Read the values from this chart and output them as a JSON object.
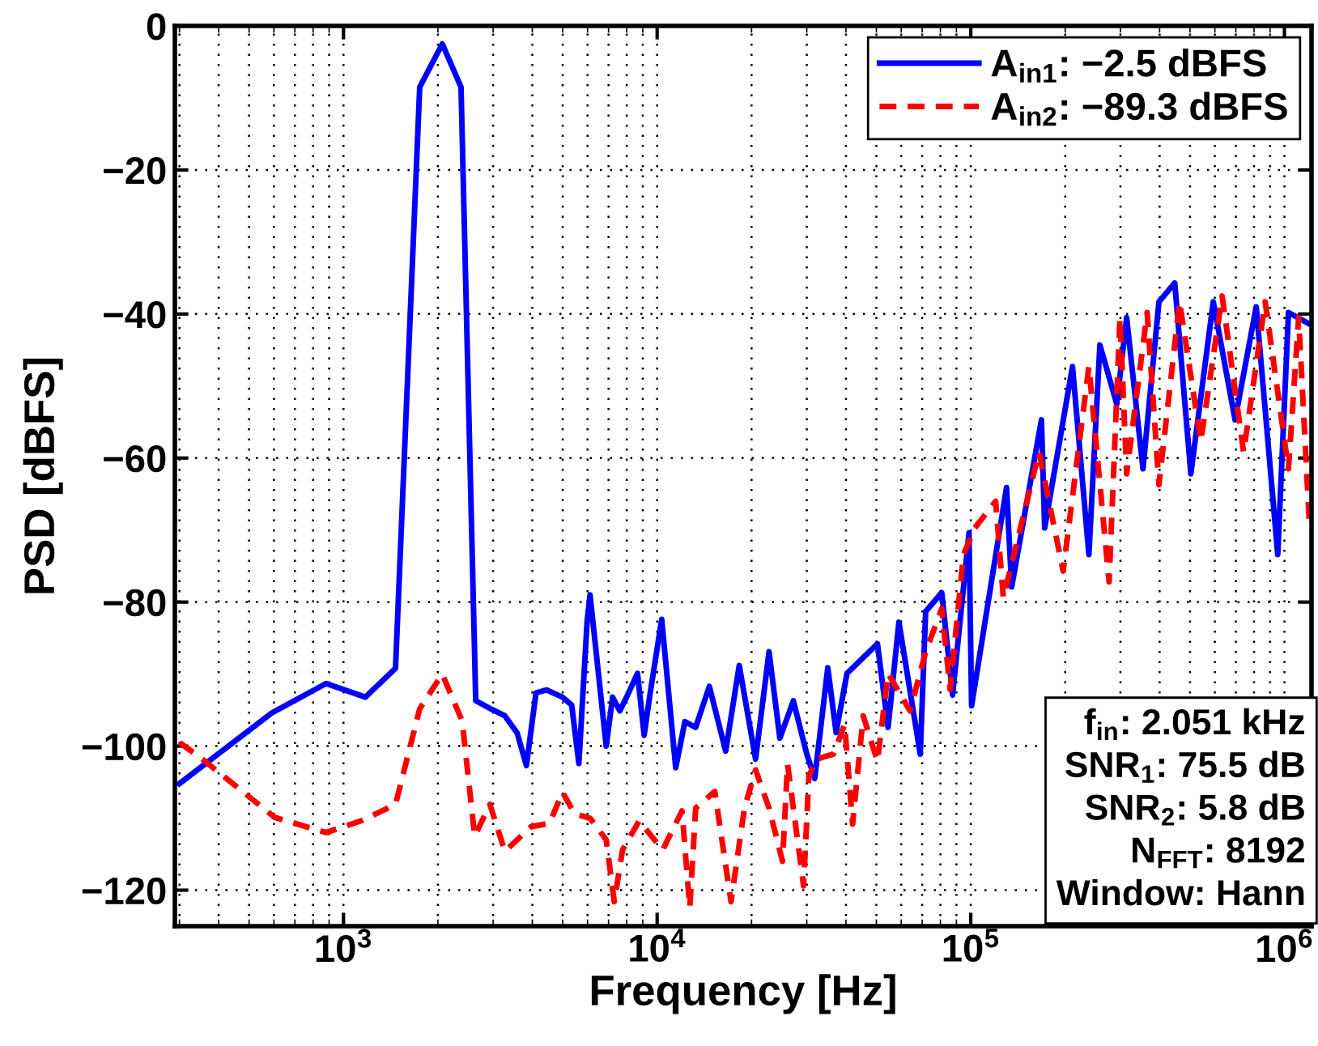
{
  "chart_data": {
    "type": "line",
    "xlabel": "Frequency [Hz]",
    "ylabel": "PSD [dBFS]",
    "log": "x",
    "xlim": [
      290,
      1220000
    ],
    "ylim": [
      -125,
      0
    ],
    "xticks": [
      {
        "value": 1000,
        "label": "10$^{3}$"
      },
      {
        "value": 10000,
        "label": "10$^{4}$"
      },
      {
        "value": 100000,
        "label": "10$^{5}$"
      },
      {
        "value": 1000000,
        "label": "10$^{6}$"
      }
    ],
    "yticks": [
      -120,
      -100,
      -80,
      -60,
      -40,
      -20,
      0
    ],
    "grid": true,
    "legend": "top right",
    "series": [
      {
        "name": "A$_{in1}$: −2.5 dBFS",
        "color": "#0000ff",
        "line_style": "solid",
        "x": [
          300,
          590,
          880,
          1175,
          1465,
          1750,
          2065,
          2370,
          2640,
          2970,
          3270,
          3580,
          3830,
          4110,
          4440,
          4990,
          5340,
          5630,
          5980,
          6110,
          6880,
          7210,
          7600,
          7990,
          8660,
          9090,
          9460,
          10340,
          11460,
          12260,
          13270,
          14670,
          16540,
          18270,
          20600,
          22740,
          24620,
          27180,
          30000,
          31800,
          35000,
          37200,
          40300,
          50400,
          54500,
          59000,
          69000,
          71800,
          80800,
          87500,
          98700,
          100600,
          130000,
          135000,
          168000,
          172000,
          211000,
          238000,
          258000,
          292000,
          314000,
          354000,
          398000,
          447000,
          503000,
          593000,
          696000,
          813000,
          952000,
          1030000,
          1190000
        ],
        "values": [
          -105.2,
          -95.4,
          -91.3,
          -93.2,
          -89.2,
          -8.5,
          -2.5,
          -8.5,
          -93.7,
          -94.9,
          -95.8,
          -98.2,
          -102.7,
          -92.6,
          -92.2,
          -93.2,
          -94.3,
          -102.4,
          -82.7,
          -79,
          -100,
          -93.2,
          -95.1,
          -93.2,
          -89.9,
          -98.5,
          -93.2,
          -82.4,
          -103,
          -96.6,
          -97.4,
          -91.7,
          -100.7,
          -88.8,
          -101.8,
          -86.9,
          -98.9,
          -93.7,
          -101.1,
          -104.5,
          -89.1,
          -98.1,
          -89.9,
          -85.8,
          -97.4,
          -82.8,
          -101.1,
          -81.3,
          -78.7,
          -92.9,
          -70.4,
          -94.4,
          -64.1,
          -77.9,
          -54.7,
          -69.7,
          -47.3,
          -73.4,
          -44.3,
          -52.5,
          -40.5,
          -61.5,
          -38.3,
          -35.7,
          -62.2,
          -38.3,
          -54.7,
          -39,
          -73.4,
          -39.8,
          -41.3
        ]
      },
      {
        "name": "A$_{in2}$: −89.3 dBFS",
        "color": "#ff0000",
        "line_style": "dashed",
        "x": [
          300,
          350,
          604,
          880,
          1150,
          1465,
          1750,
          2065,
          2390,
          2620,
          2930,
          3270,
          3960,
          4540,
          4990,
          5460,
          6110,
          6880,
          7300,
          7760,
          8760,
          10420,
          12000,
          12710,
          13270,
          15270,
          17200,
          18980,
          20600,
          22740,
          25100,
          26050,
          29300,
          30470,
          32300,
          36500,
          39600,
          42000,
          45400,
          50400,
          54500,
          64000,
          71800,
          80800,
          85900,
          94800,
          103000,
          120000,
          127000,
          165000,
          197000,
          238000,
          276000,
          299000,
          314000,
          365000,
          398000,
          463000,
          541000,
          633000,
          741000,
          868000,
          1030000,
          1110000,
          1200000
        ],
        "values": [
          -99.5,
          -101.6,
          -109.9,
          -112,
          -110.3,
          -108.1,
          -94.8,
          -90,
          -96.5,
          -112.5,
          -108.1,
          -114.6,
          -111.2,
          -110.7,
          -106.4,
          -109.4,
          -110,
          -113,
          -121.6,
          -114.4,
          -110.4,
          -114.4,
          -109,
          -122.4,
          -108.6,
          -106.3,
          -121.6,
          -108.6,
          -103.3,
          -108.6,
          -116,
          -102.5,
          -119.4,
          -104.1,
          -101.8,
          -101.1,
          -97,
          -110.8,
          -95.8,
          -102.1,
          -89.9,
          -95.1,
          -86.9,
          -80.9,
          -92.1,
          -73.4,
          -69.7,
          -66,
          -79.4,
          -59.2,
          -75.7,
          -47.3,
          -77.2,
          -40.5,
          -62.2,
          -39.8,
          -63.7,
          -38.3,
          -57.7,
          -37.5,
          -59.2,
          -38.3,
          -61.5,
          -40.5,
          -68.9
        ]
      }
    ],
    "annotations": [
      "f$_{in}$: 2.051 kHz",
      "SNR$_{1}$: 75.5 dB",
      "SNR$_{2}$: 5.8 dB",
      "N$_{FFT}$: 8192",
      "Window: Hann"
    ]
  }
}
